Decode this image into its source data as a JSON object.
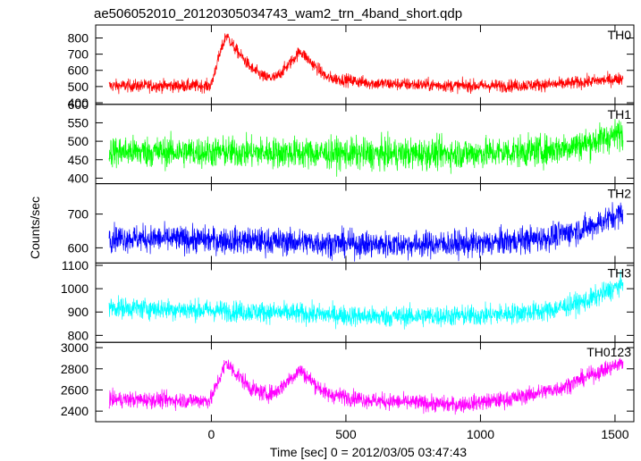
{
  "title": "ae506052010_20120305034743_wam2_trn_4band_short.qdp",
  "chart_data": {
    "type": "line",
    "title": "ae506052010_20120305034743_wam2_trn_4band_short.qdp",
    "xlabel": "Time [sec] 0 = 2012/03/05 03:47:43",
    "ylabel": "Counts/sec",
    "xlim": [
      -430,
      1570
    ],
    "xticks": [
      0,
      500,
      1000,
      1500
    ],
    "x_range": [
      -380,
      1530
    ],
    "grid": false,
    "panels": [
      {
        "name": "TH0",
        "color": "#ff0000",
        "ylim": [
          390,
          880
        ],
        "yticks": [
          400,
          500,
          600,
          700,
          800
        ],
        "profile": [
          [
            -380,
            505
          ],
          [
            -10,
            505
          ],
          [
            0,
            510
          ],
          [
            20,
            640
          ],
          [
            55,
            820
          ],
          [
            90,
            730
          ],
          [
            150,
            610
          ],
          [
            200,
            555
          ],
          [
            240,
            555
          ],
          [
            290,
            640
          ],
          [
            330,
            720
          ],
          [
            370,
            650
          ],
          [
            430,
            555
          ],
          [
            600,
            520
          ],
          [
            900,
            505
          ],
          [
            1100,
            505
          ],
          [
            1300,
            515
          ],
          [
            1530,
            550
          ]
        ],
        "noise": 28
      },
      {
        "name": "TH1",
        "color": "#00ff00",
        "ylim": [
          385,
          600
        ],
        "yticks": [
          400,
          450,
          500,
          550,
          600
        ],
        "profile": [
          [
            -380,
            472
          ],
          [
            200,
            470
          ],
          [
            600,
            465
          ],
          [
            1000,
            468
          ],
          [
            1250,
            475
          ],
          [
            1400,
            495
          ],
          [
            1530,
            522
          ]
        ],
        "noise": 30
      },
      {
        "name": "TH2",
        "color": "#0000ff",
        "ylim": [
          555,
          790
        ],
        "yticks": [
          600,
          700
        ],
        "profile": [
          [
            -380,
            630
          ],
          [
            200,
            620
          ],
          [
            600,
            610
          ],
          [
            1000,
            612
          ],
          [
            1250,
            630
          ],
          [
            1400,
            660
          ],
          [
            1530,
            705
          ]
        ],
        "noise": 28
      },
      {
        "name": "TH3",
        "color": "#00ffff",
        "ylim": [
          770,
          1110
        ],
        "yticks": [
          800,
          900,
          1000,
          1100
        ],
        "profile": [
          [
            -380,
            920
          ],
          [
            200,
            900
          ],
          [
            600,
            880
          ],
          [
            1000,
            885
          ],
          [
            1250,
            905
          ],
          [
            1400,
            950
          ],
          [
            1530,
            1020
          ]
        ],
        "noise": 32
      },
      {
        "name": "TH0123",
        "color": "#ff00ff",
        "ylim": [
          2300,
          3050
        ],
        "yticks": [
          2400,
          2600,
          2800,
          3000
        ],
        "profile": [
          [
            -380,
            2510
          ],
          [
            -10,
            2500
          ],
          [
            0,
            2520
          ],
          [
            20,
            2650
          ],
          [
            55,
            2860
          ],
          [
            90,
            2760
          ],
          [
            150,
            2610
          ],
          [
            200,
            2560
          ],
          [
            240,
            2580
          ],
          [
            290,
            2700
          ],
          [
            330,
            2790
          ],
          [
            370,
            2690
          ],
          [
            430,
            2560
          ],
          [
            600,
            2500
          ],
          [
            900,
            2460
          ],
          [
            1100,
            2510
          ],
          [
            1300,
            2620
          ],
          [
            1400,
            2730
          ],
          [
            1530,
            2860
          ]
        ],
        "noise": 55
      }
    ]
  }
}
